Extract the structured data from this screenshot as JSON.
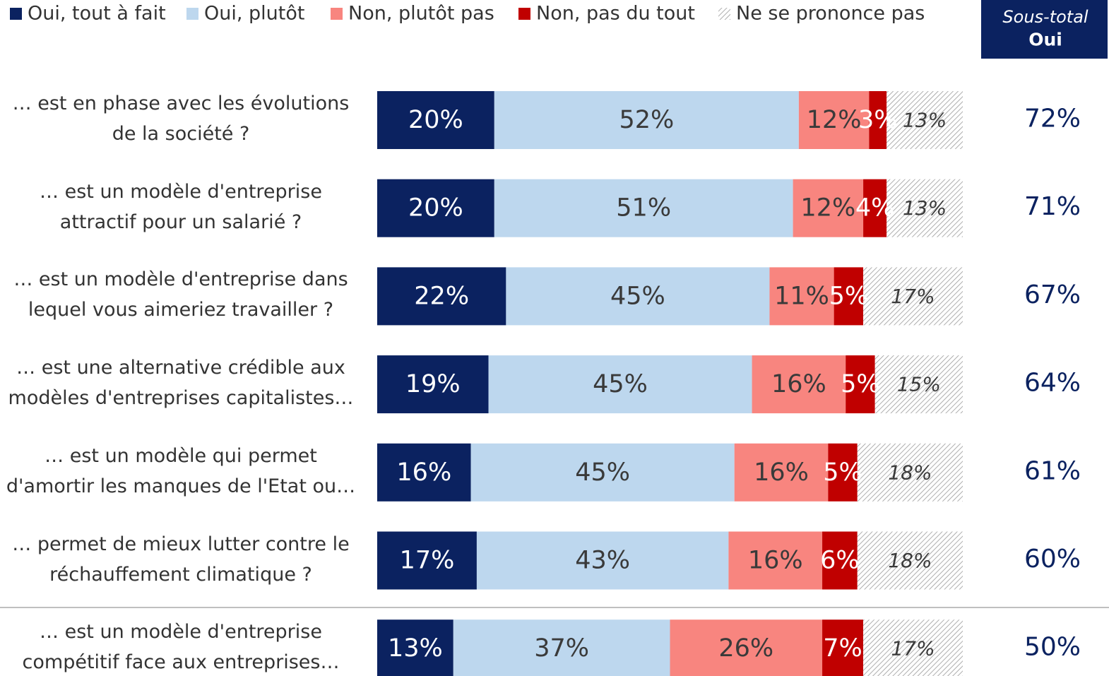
{
  "chart_data": {
    "type": "bar",
    "orientation": "horizontal",
    "stacked": true,
    "categories": [
      "… est en phase avec les évolutions\nde la société ?",
      "… est un modèle d'entreprise\nattractif pour un salarié ?",
      "… est un modèle d'entreprise dans\nlequel vous aimeriez travailler ?",
      "… est une alternative crédible aux\nmodèles d'entreprises capitalistes…",
      "… est un modèle qui permet\nd'amortir les manques de l'Etat ou…",
      "… permet de mieux lutter contre le\nréchauffement climatique ?",
      "… est un modèle d'entreprise\ncompétitif face aux entreprises…"
    ],
    "series": [
      {
        "name": "Oui, tout à fait",
        "color": "#0b2260",
        "label_color": "#ffffff",
        "values": [
          20,
          20,
          22,
          19,
          16,
          17,
          13
        ],
        "value_labels": [
          "20%",
          "20%",
          "22%",
          "19%",
          "16%",
          "17%",
          "13%"
        ]
      },
      {
        "name": "Oui, plutôt",
        "color": "#bdd7ee",
        "label_color": "#3a3a3a",
        "values": [
          52,
          51,
          45,
          45,
          45,
          43,
          37
        ],
        "value_labels": [
          "52%",
          "51%",
          "45%",
          "45%",
          "45%",
          "43%",
          "37%"
        ]
      },
      {
        "name": "Non, plutôt pas",
        "color": "#f8857f",
        "label_color": "#3a3a3a",
        "values": [
          12,
          12,
          11,
          16,
          16,
          16,
          26
        ],
        "value_labels": [
          "12%",
          "12%",
          "11%",
          "16%",
          "16%",
          "16%",
          "26%"
        ]
      },
      {
        "name": "Non, pas du tout",
        "color": "#c00000",
        "label_color": "#ffffff",
        "values": [
          3,
          4,
          5,
          5,
          5,
          6,
          7
        ],
        "value_labels": [
          "3%",
          "4%",
          "5%",
          "5%",
          "5%",
          "6%",
          "7%"
        ]
      },
      {
        "name": "Ne se prononce pas",
        "color": "hatch",
        "label_color": "#3a3a3a",
        "values": [
          13,
          13,
          17,
          15,
          18,
          18,
          17
        ],
        "value_labels": [
          "13%",
          "13%",
          "17%",
          "15%",
          "18%",
          "18%",
          "17%"
        ]
      }
    ],
    "subtotal": {
      "title": "Sous-total",
      "label": "Oui",
      "color": "#0b2260",
      "values": [
        72,
        71,
        67,
        64,
        61,
        60,
        50
      ],
      "value_labels": [
        "72%",
        "71%",
        "67%",
        "64%",
        "61%",
        "60%",
        "50%"
      ]
    }
  }
}
